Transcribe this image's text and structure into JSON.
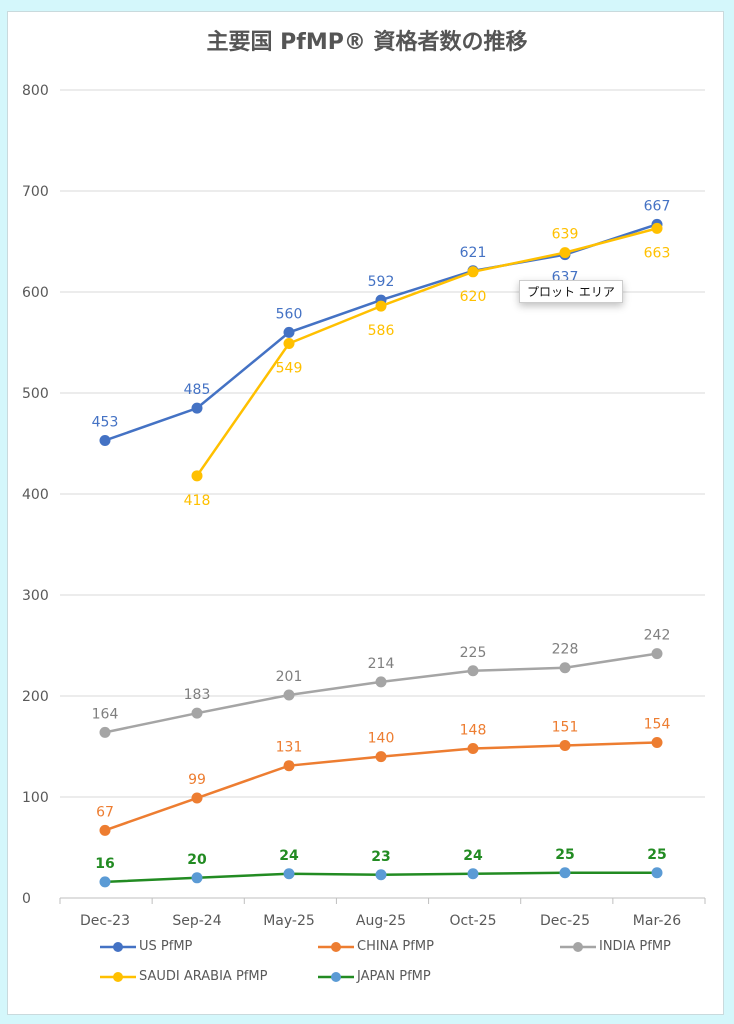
{
  "chart_data": {
    "type": "line",
    "title": "主要国 PfMP® 資格者数の推移",
    "categories": [
      "Dec-23",
      "Sep-24",
      "May-25",
      "Aug-25",
      "Oct-25",
      "Dec-25",
      "Mar-26"
    ],
    "ylim": [
      0,
      800
    ],
    "yticks": [
      "0",
      "100",
      "200",
      "300",
      "400",
      "500",
      "600",
      "700",
      "800"
    ],
    "grid": true,
    "legend_position": "bottom",
    "series": [
      {
        "name": "US PfMP",
        "color": "#4472c4",
        "marker": "#4472c4",
        "label_color": "#4472c4",
        "values": [
          453,
          485,
          560,
          592,
          621,
          637,
          667
        ]
      },
      {
        "name": "CHINA PfMP",
        "color": "#ed7d31",
        "marker": "#ed7d31",
        "label_color": "#ed7d31",
        "values": [
          67,
          99,
          131,
          140,
          148,
          151,
          154
        ]
      },
      {
        "name": "INDIA PfMP",
        "color": "#a5a5a5",
        "marker": "#a5a5a5",
        "label_color": "#7f7f7f",
        "values": [
          164,
          183,
          201,
          214,
          225,
          228,
          242
        ]
      },
      {
        "name": "SAUDI ARABIA PfMP",
        "color": "#ffc000",
        "marker": "#ffc000",
        "label_color": "#ffc000",
        "values": [
          null,
          418,
          549,
          586,
          620,
          639,
          663
        ]
      },
      {
        "name": "JAPAN PfMP",
        "color": "#228b22",
        "marker": "#5b9bd5",
        "label_color": "#228b22",
        "values": [
          16,
          20,
          24,
          23,
          24,
          25,
          25
        ]
      }
    ]
  },
  "tooltip": "プロット エリア"
}
